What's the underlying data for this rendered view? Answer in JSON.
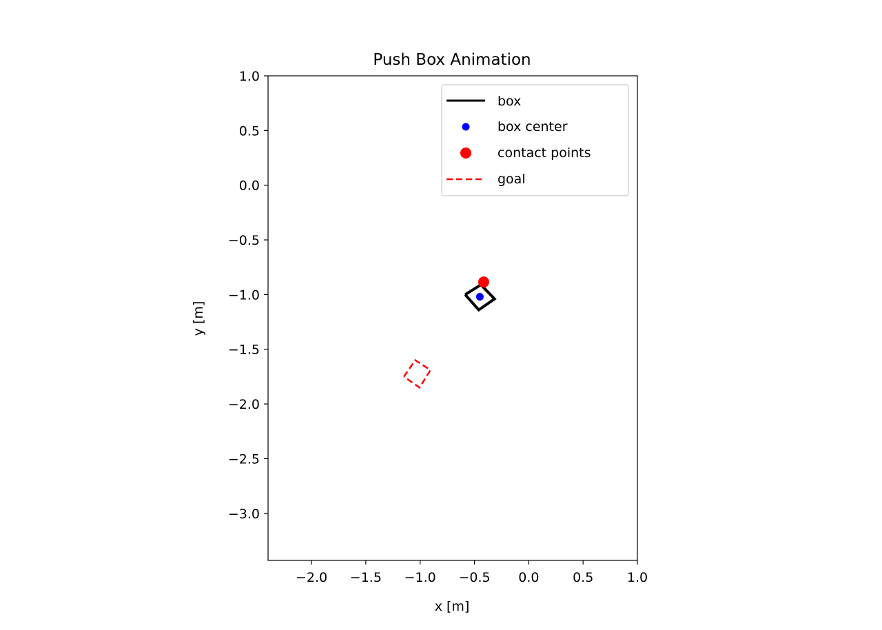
{
  "chart_data": {
    "type": "line",
    "title": "Push Box Animation",
    "xlabel": "x [m]",
    "ylabel": "y [m]",
    "xlim": [
      -2.4,
      1.0
    ],
    "ylim": [
      -3.43,
      1.0
    ],
    "xticks": [
      -2.0,
      -1.5,
      -1.0,
      -0.5,
      0.0,
      0.5,
      1.0
    ],
    "xtick_labels": [
      "−2.0",
      "−1.5",
      "−1.0",
      "−0.5",
      "0.0",
      "0.5",
      "1.0"
    ],
    "yticks": [
      1.0,
      0.5,
      0.0,
      -0.5,
      -1.0,
      -1.5,
      -2.0,
      -2.5,
      -3.0
    ],
    "ytick_labels": [
      "1.0",
      "0.5",
      "0.0",
      "−0.5",
      "−1.0",
      "−1.5",
      "−2.0",
      "−2.5",
      "−3.0"
    ],
    "grid": false,
    "legend_position": "top-right",
    "series": [
      {
        "name": "box",
        "kind": "line",
        "color": "#000000",
        "style": "solid",
        "x": [
          -0.585,
          -0.44,
          -0.315,
          -0.46,
          -0.585
        ],
        "y": [
          -1.0,
          -0.91,
          -1.04,
          -1.14,
          -1.0
        ]
      },
      {
        "name": "box center",
        "kind": "scatter",
        "color": "#0000ff",
        "x": [
          -0.45
        ],
        "y": [
          -1.02
        ]
      },
      {
        "name": "contact points",
        "kind": "scatter",
        "color": "#ff0000",
        "x": [
          -0.415
        ],
        "y": [
          -0.885
        ]
      },
      {
        "name": "goal",
        "kind": "line",
        "color": "#ff0000",
        "style": "dashed",
        "x": [
          -1.15,
          -1.045,
          -0.905,
          -1.005,
          -1.15
        ],
        "y": [
          -1.75,
          -1.6,
          -1.69,
          -1.85,
          -1.75
        ]
      }
    ]
  }
}
